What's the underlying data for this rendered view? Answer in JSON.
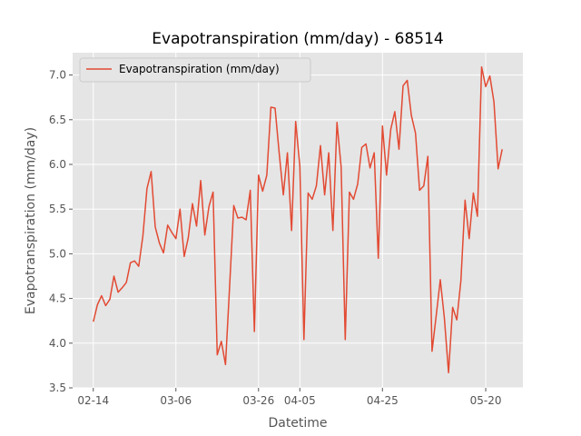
{
  "chart_data": {
    "type": "line",
    "title": "Evapotranspiration (mm/day) - 68514",
    "xlabel": "Datetime",
    "ylabel": "Evapotranspiration (mm/day)",
    "ylim": [
      3.5,
      7.25
    ],
    "x_range": [
      "2025-02-09",
      "2025-05-29"
    ],
    "x_ticks": [
      {
        "date": "2025-02-14",
        "label": "02-14"
      },
      {
        "date": "2025-03-06",
        "label": "03-06"
      },
      {
        "date": "2025-03-26",
        "label": "03-26"
      },
      {
        "date": "2025-04-05",
        "label": "04-05"
      },
      {
        "date": "2025-04-25",
        "label": "04-25"
      },
      {
        "date": "2025-05-20",
        "label": "05-20"
      }
    ],
    "y_ticks": [
      "3.5",
      "4.0",
      "4.5",
      "5.0",
      "5.5",
      "6.0",
      "6.5",
      "7.0"
    ],
    "grid": true,
    "legend_position": "upper-left",
    "colors": {
      "line": "#E24A33",
      "plot_bg": "#E5E5E5",
      "grid": "#FFFFFF"
    },
    "series": [
      {
        "name": "Evapotranspiration (mm/day)",
        "x": [
          "2025-02-14",
          "2025-02-15",
          "2025-02-16",
          "2025-02-17",
          "2025-02-18",
          "2025-02-19",
          "2025-02-20",
          "2025-02-21",
          "2025-02-22",
          "2025-02-23",
          "2025-02-24",
          "2025-02-25",
          "2025-02-26",
          "2025-02-27",
          "2025-02-28",
          "2025-03-01",
          "2025-03-02",
          "2025-03-03",
          "2025-03-04",
          "2025-03-05",
          "2025-03-06",
          "2025-03-07",
          "2025-03-08",
          "2025-03-09",
          "2025-03-10",
          "2025-03-11",
          "2025-03-12",
          "2025-03-13",
          "2025-03-14",
          "2025-03-15",
          "2025-03-16",
          "2025-03-17",
          "2025-03-18",
          "2025-03-19",
          "2025-03-20",
          "2025-03-21",
          "2025-03-22",
          "2025-03-23",
          "2025-03-24",
          "2025-03-25",
          "2025-03-26",
          "2025-03-27",
          "2025-03-28",
          "2025-03-29",
          "2025-03-30",
          "2025-03-31",
          "2025-04-01",
          "2025-04-02",
          "2025-04-03",
          "2025-04-04",
          "2025-04-05",
          "2025-04-06",
          "2025-04-07",
          "2025-04-08",
          "2025-04-09",
          "2025-04-10",
          "2025-04-11",
          "2025-04-12",
          "2025-04-13",
          "2025-04-14",
          "2025-04-15",
          "2025-04-16",
          "2025-04-17",
          "2025-04-18",
          "2025-04-19",
          "2025-04-20",
          "2025-04-21",
          "2025-04-22",
          "2025-04-23",
          "2025-04-24",
          "2025-04-25",
          "2025-04-26",
          "2025-04-27",
          "2025-04-28",
          "2025-04-29",
          "2025-04-30",
          "2025-05-01",
          "2025-05-02",
          "2025-05-03",
          "2025-05-04",
          "2025-05-05",
          "2025-05-06",
          "2025-05-07",
          "2025-05-08",
          "2025-05-09",
          "2025-05-10",
          "2025-05-11",
          "2025-05-12",
          "2025-05-13",
          "2025-05-14",
          "2025-05-15",
          "2025-05-16",
          "2025-05-17",
          "2025-05-18",
          "2025-05-19",
          "2025-05-20",
          "2025-05-21",
          "2025-05-22",
          "2025-05-23",
          "2025-05-24"
        ],
        "y": [
          4.24,
          4.43,
          4.53,
          4.42,
          4.49,
          4.75,
          4.57,
          4.62,
          4.68,
          4.9,
          4.92,
          4.86,
          5.2,
          5.73,
          5.92,
          5.3,
          5.12,
          5.01,
          5.32,
          5.24,
          5.17,
          5.5,
          4.97,
          5.18,
          5.56,
          5.31,
          5.82,
          5.21,
          5.53,
          5.69,
          3.87,
          4.02,
          3.76,
          4.63,
          5.54,
          5.4,
          5.41,
          5.38,
          5.71,
          4.13,
          5.88,
          5.7,
          5.88,
          6.64,
          6.63,
          6.13,
          5.66,
          6.13,
          5.26,
          6.48,
          5.98,
          4.04,
          5.68,
          5.61,
          5.76,
          6.21,
          5.66,
          6.13,
          5.26,
          6.47,
          5.97,
          4.04,
          5.69,
          5.61,
          5.78,
          6.19,
          6.23,
          5.96,
          6.13,
          4.95,
          6.43,
          5.88,
          6.39,
          6.59,
          6.17,
          6.88,
          6.94,
          6.55,
          6.35,
          5.71,
          5.76,
          6.09,
          3.91,
          4.3,
          4.71,
          4.28,
          3.67,
          4.4,
          4.26,
          4.7,
          5.6,
          5.17,
          5.68,
          5.42,
          7.09,
          6.87,
          6.99,
          6.7,
          5.95,
          6.17
        ]
      }
    ]
  }
}
